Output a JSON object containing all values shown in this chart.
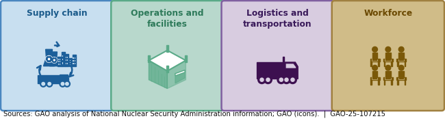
{
  "boxes": [
    {
      "label": "Supply chain",
      "bg_color": "#c8dff0",
      "border_color": "#4a86c0",
      "title_color": "#1a5a8a",
      "icon_color": "#1c5f9a",
      "icon_type": "supply_chain"
    },
    {
      "label": "Operations and\nfacilities",
      "bg_color": "#b8d8cc",
      "border_color": "#5aaa88",
      "title_color": "#2e7a5a",
      "icon_color": "#5aaa88",
      "icon_type": "operations"
    },
    {
      "label": "Logistics and\ntransportation",
      "bg_color": "#d8cce0",
      "border_color": "#8060a0",
      "title_color": "#3a1a5a",
      "icon_color": "#3d1050",
      "icon_type": "logistics"
    },
    {
      "label": "Workforce",
      "bg_color": "#d0bc88",
      "border_color": "#a08040",
      "title_color": "#6a4800",
      "icon_color": "#7a5808",
      "icon_type": "workforce"
    }
  ],
  "footer_text": "Sources: GAO analysis of National Nuclear Security Administration information; GAO (icons).  |  GAO-25-107215",
  "footer_fontsize": 7.2,
  "background_color": "#ffffff"
}
